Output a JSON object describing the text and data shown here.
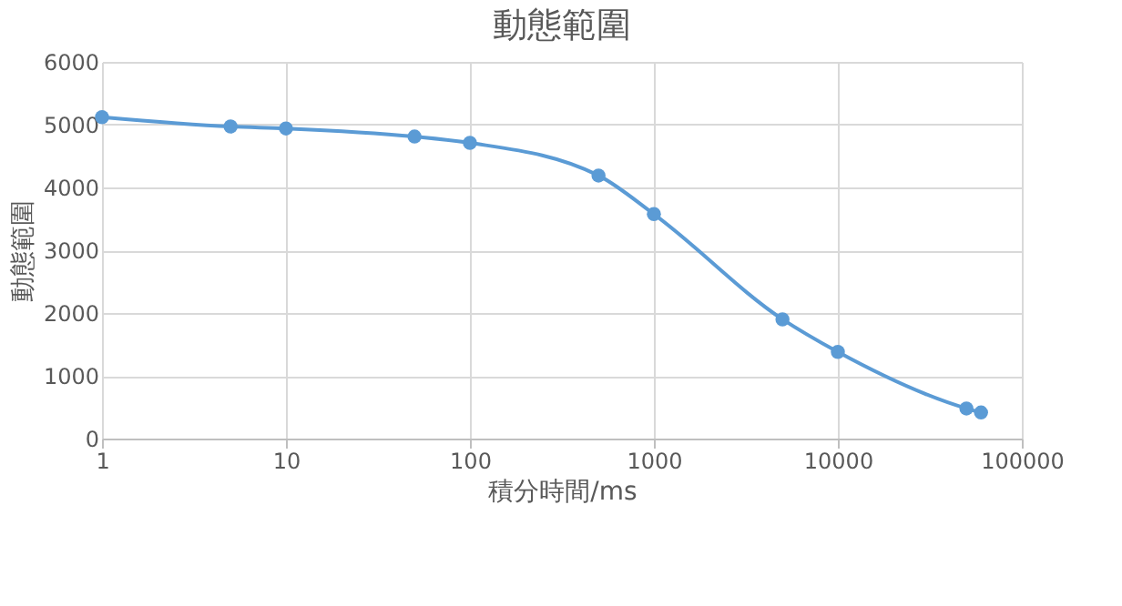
{
  "chart_data": {
    "type": "line",
    "title": "動態範圍",
    "xlabel": "積分時間/ms",
    "ylabel": "動態範圍",
    "x": [
      1,
      5,
      10,
      50,
      100,
      500,
      1000,
      5000,
      10000,
      50000,
      60000
    ],
    "series": [
      {
        "color": "#5b9bd5",
        "values": [
          5120,
          4970,
          4940,
          4810,
          4710,
          4190,
          3575,
          1900,
          1380,
          480,
          415
        ]
      }
    ],
    "log": "x",
    "xlim": [
      1,
      100000
    ],
    "xticks": [
      1,
      10,
      100,
      1000,
      10000,
      100000
    ],
    "ylim": [
      0,
      6000
    ],
    "yticks": [
      0,
      1000,
      2000,
      3000,
      4000,
      5000,
      6000
    ],
    "grid": true,
    "marker": "circle",
    "line_style": "solid"
  }
}
